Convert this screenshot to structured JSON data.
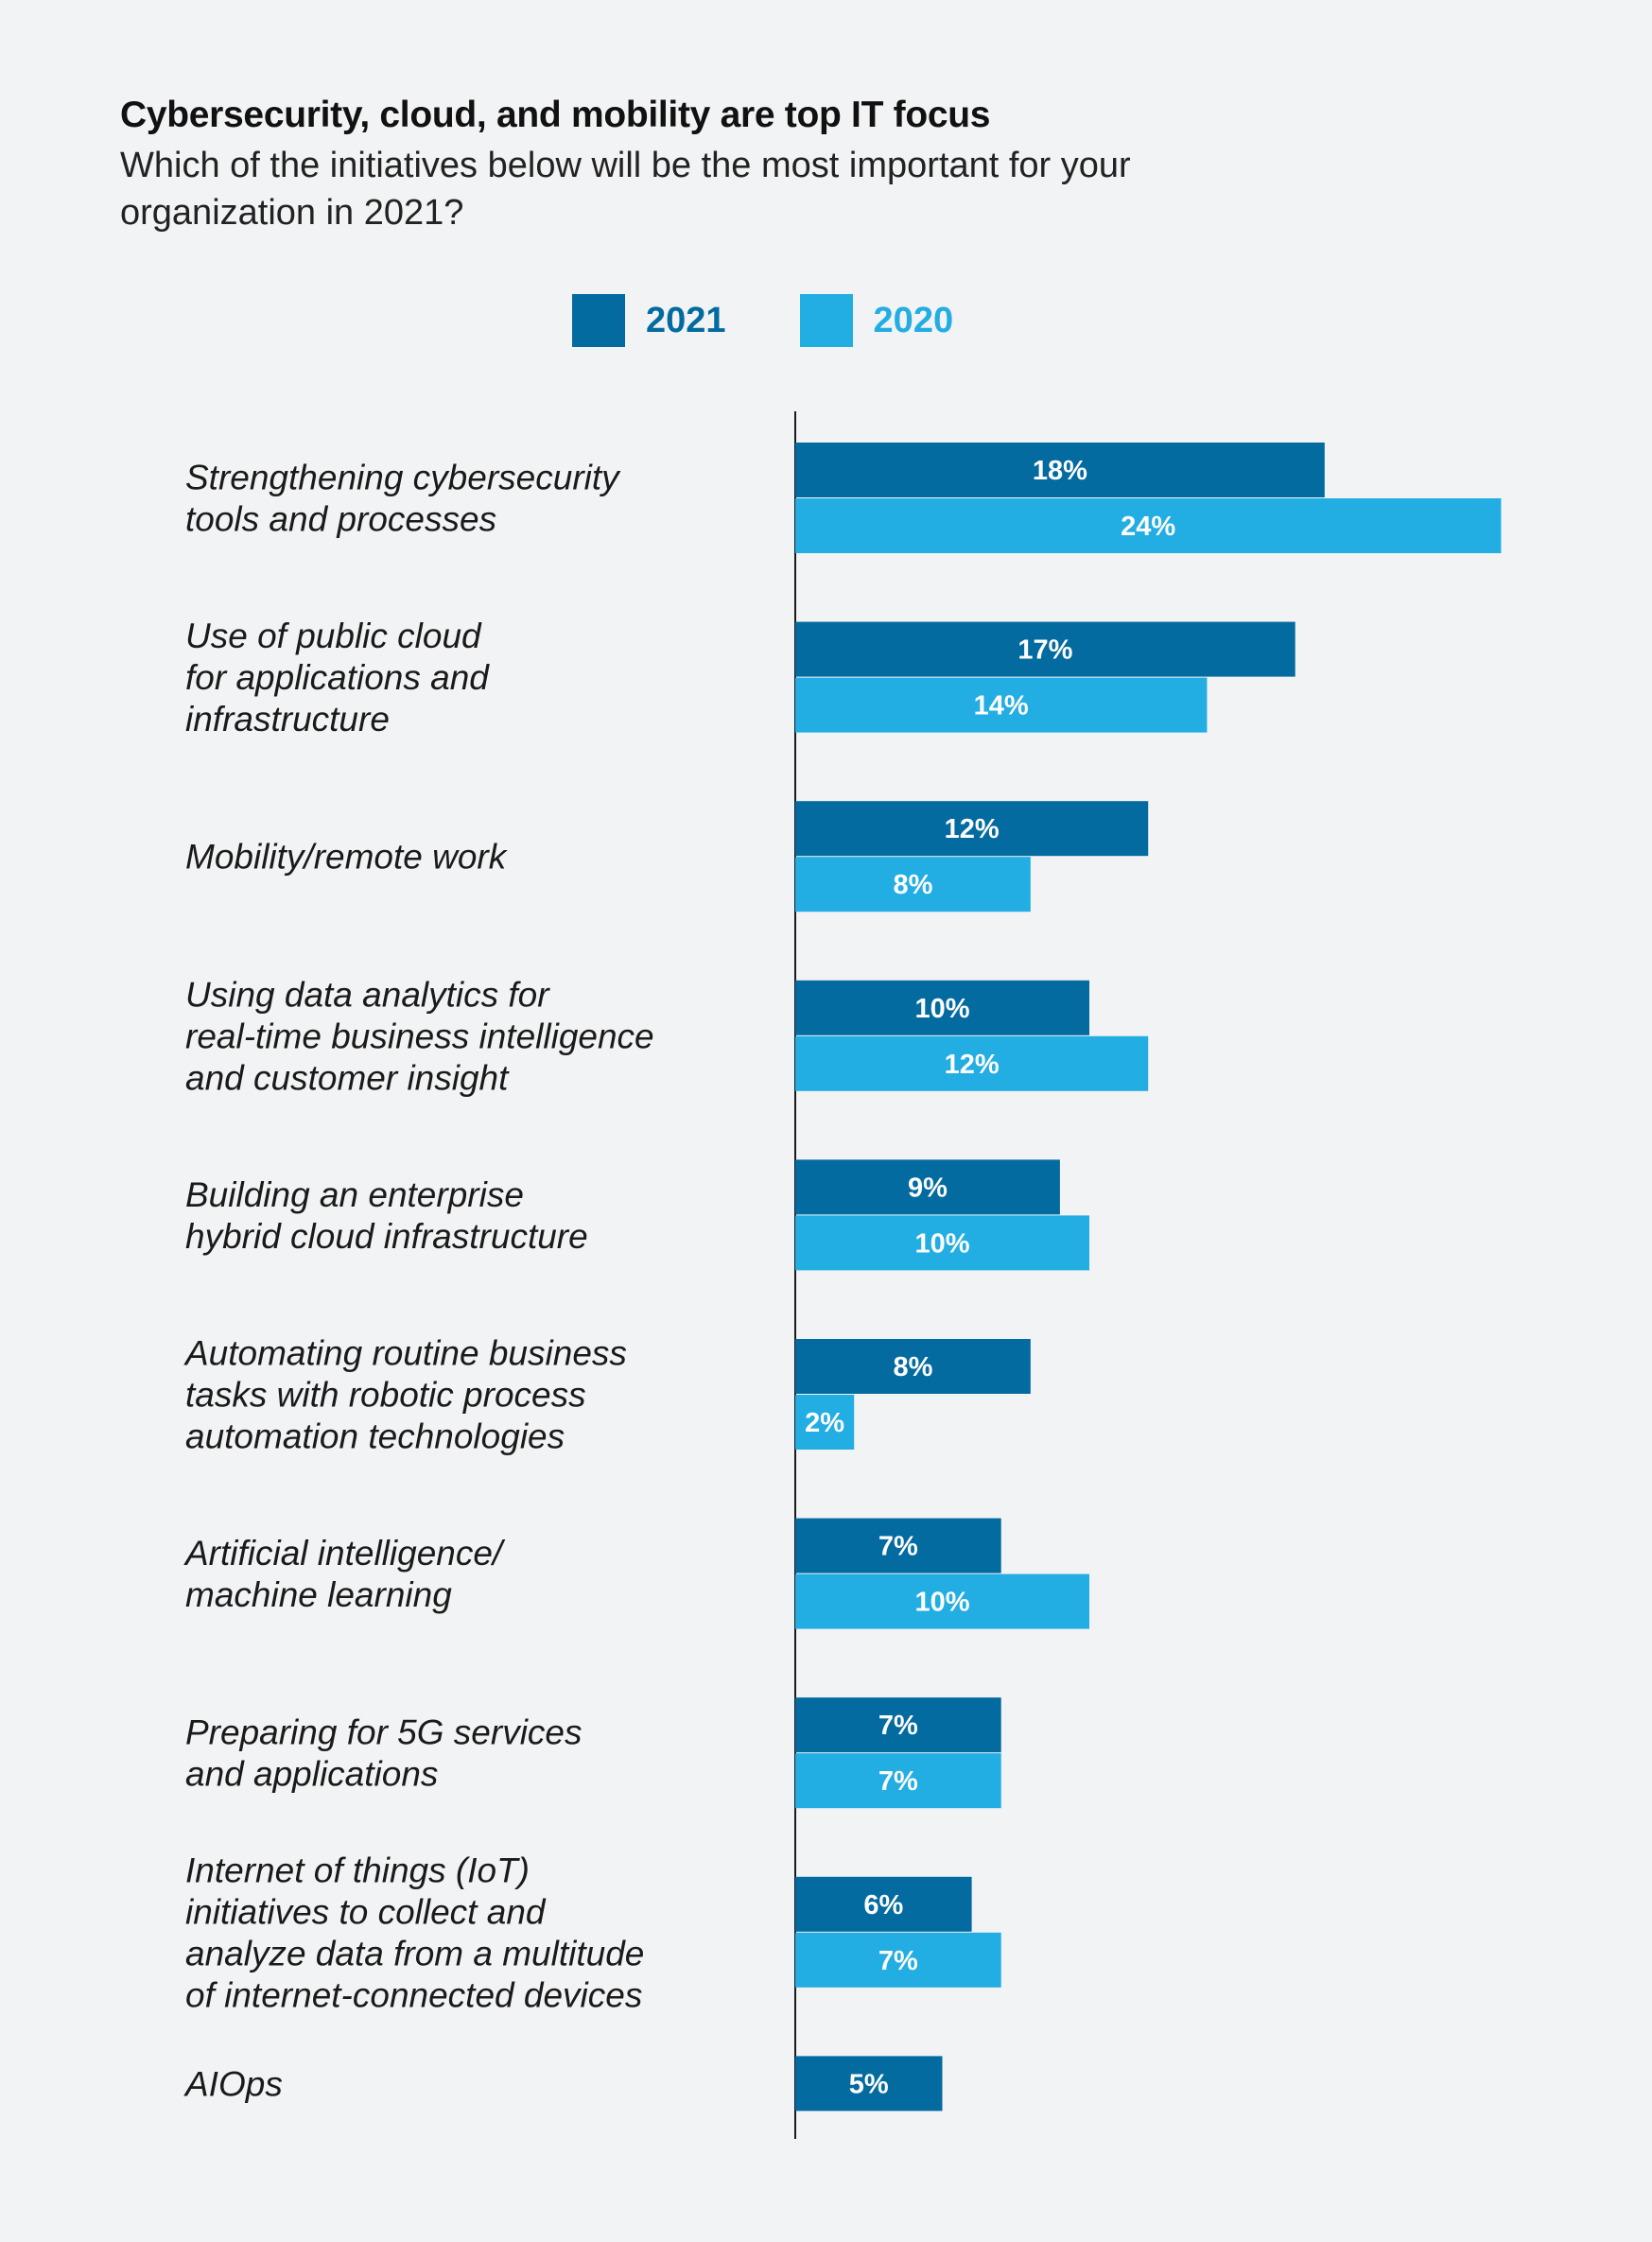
{
  "header": {
    "title": "Cybersecurity, cloud, and mobility are top IT focus",
    "subtitle": "Which of the initiatives below will be the most important for your organization in 2021?"
  },
  "legend": {
    "items": [
      {
        "label": "2021",
        "color": "#036ba0"
      },
      {
        "label": "2020",
        "color": "#22ade3"
      }
    ]
  },
  "chart_data": {
    "type": "bar",
    "orientation": "horizontal",
    "title": "Cybersecurity, cloud, and mobility are top IT focus",
    "subtitle": "Which of the initiatives below will be the most important for your organization in 2021?",
    "legend_position": "top",
    "grid": false,
    "xlim": [
      0,
      24
    ],
    "categories": [
      [
        "Strengthening cybersecurity",
        "tools and processes"
      ],
      [
        "Use of public cloud",
        "for applications and",
        "infrastructure"
      ],
      [
        "Mobility/remote work"
      ],
      [
        "Using data analytics for",
        "real-time business intelligence",
        "and customer insight"
      ],
      [
        "Building an enterprise",
        "hybrid cloud infrastructure"
      ],
      [
        "Automating routine business",
        "tasks with robotic process",
        "automation technologies"
      ],
      [
        "Artificial intelligence/",
        "machine learning"
      ],
      [
        "Preparing for 5G services",
        "and applications"
      ],
      [
        "Internet of things (IoT)",
        "initiatives to collect and",
        "analyze data from a multitude",
        "of internet-connected devices"
      ],
      [
        "AIOps"
      ]
    ],
    "series": [
      {
        "name": "2021",
        "color": "#036ba0",
        "values": [
          18,
          17,
          12,
          10,
          9,
          8,
          7,
          7,
          6,
          5
        ]
      },
      {
        "name": "2020",
        "color": "#22ade3",
        "values": [
          24,
          14,
          8,
          12,
          10,
          2,
          10,
          7,
          7,
          null
        ]
      }
    ],
    "value_suffix": "%"
  }
}
